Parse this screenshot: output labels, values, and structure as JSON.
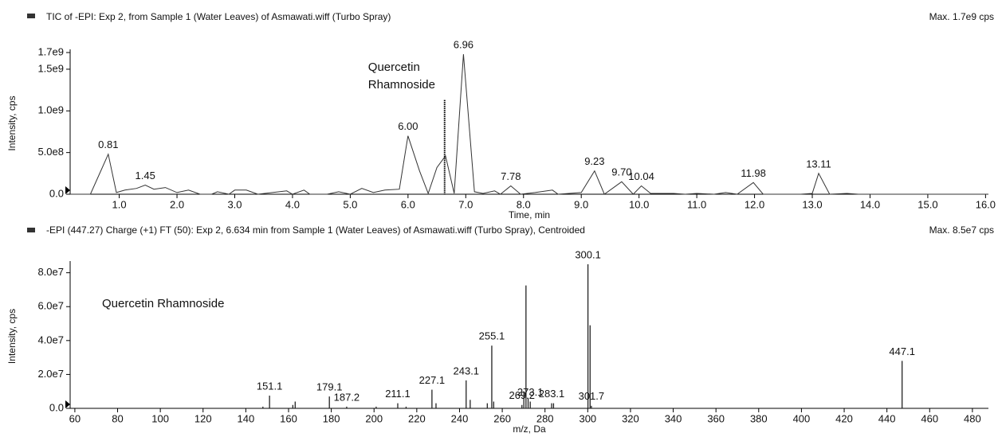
{
  "chart_data": [
    {
      "type": "line",
      "title": "TIC of -EPI: Exp 2, from Sample 1 (Water Leaves) of Asmawati.wiff (Turbo Spray)",
      "max_label": "Max. 1.7e9 cps",
      "x_label": "Time, min",
      "y_label": "Intensity, cps",
      "color": "#333333",
      "x": [
        0.15,
        0.5,
        0.81,
        0.95,
        1.1,
        1.3,
        1.45,
        1.6,
        1.8,
        2.0,
        2.2,
        2.4,
        2.6,
        2.7,
        2.9,
        3.0,
        3.2,
        3.4,
        3.9,
        4.0,
        4.2,
        4.3,
        4.6,
        4.8,
        5.0,
        5.2,
        5.4,
        5.6,
        5.85,
        6.0,
        6.2,
        6.35,
        6.5,
        6.65,
        6.8,
        6.96,
        7.15,
        7.3,
        7.5,
        7.6,
        7.78,
        7.95,
        8.2,
        8.5,
        8.6,
        9.0,
        9.23,
        9.4,
        9.7,
        9.9,
        10.04,
        10.2,
        10.6,
        10.8,
        11.0,
        11.3,
        11.5,
        11.7,
        11.98,
        12.15,
        12.8,
        13.0,
        13.11,
        13.3,
        13.6,
        13.8,
        16.05
      ],
      "values": [
        0,
        0,
        480000000.0,
        20000000.0,
        50000000.0,
        70000000.0,
        110000000.0,
        60000000.0,
        80000000.0,
        20000000.0,
        50000000.0,
        0,
        0,
        30000000.0,
        0,
        50000000.0,
        50000000.0,
        0,
        40000000.0,
        0,
        50000000.0,
        0,
        0,
        30000000.0,
        0,
        70000000.0,
        20000000.0,
        50000000.0,
        60000000.0,
        700000000.0,
        280000000.0,
        10000000.0,
        320000000.0,
        460000000.0,
        10000000.0,
        1680000000.0,
        30000000.0,
        10000000.0,
        40000000.0,
        0,
        100000000.0,
        0,
        20000000.0,
        50000000.0,
        0,
        20000000.0,
        280000000.0,
        0,
        150000000.0,
        0,
        100000000.0,
        10000000.0,
        10000000.0,
        0,
        10000000.0,
        0,
        20000000.0,
        0,
        140000000.0,
        0,
        0,
        10000000.0,
        250000000.0,
        0,
        10000000.0,
        0,
        0
      ],
      "peaks": [
        0.81,
        1.45,
        {
          "value": 6,
          "label": "6.00"
        },
        6.96,
        7.78,
        9.23,
        {
          "value": 9.7,
          "label": "9.70"
        },
        10.04,
        11.98,
        13.11
      ],
      "marker": {
        "x": 6.634,
        "y": 1130000000.0
      },
      "annotation": [
        "Quercetin",
        "Rhamnoside"
      ],
      "xlim": [
        0.15,
        16.05
      ],
      "ylim": [
        0,
        1700000000.0
      ],
      "xticks": [
        {
          "value": 1,
          "label": "1.0"
        },
        {
          "value": 2,
          "label": "2.0"
        },
        {
          "value": 3,
          "label": "3.0"
        },
        {
          "value": 4,
          "label": "4.0"
        },
        {
          "value": 5,
          "label": "5.0"
        },
        {
          "value": 6,
          "label": "6.0"
        },
        {
          "value": 7,
          "label": "7.0"
        },
        {
          "value": 8,
          "label": "8.0"
        },
        {
          "value": 9,
          "label": "9.0"
        },
        {
          "value": 10,
          "label": "10.0"
        },
        {
          "value": 11,
          "label": "11.0"
        },
        {
          "value": 12,
          "label": "12.0"
        },
        {
          "value": 13,
          "label": "13.0"
        },
        {
          "value": 14,
          "label": "14.0"
        },
        {
          "value": 15,
          "label": "15.0"
        },
        {
          "value": 16,
          "label": "16.0"
        }
      ],
      "yticks": [
        {
          "value": 0,
          "label": "0.0"
        },
        {
          "value": 500000000.0,
          "label": "5.0e8"
        },
        {
          "value": 1000000000.0,
          "label": "1.0e9"
        },
        {
          "value": 1500000000.0,
          "label": "1.5e9"
        },
        {
          "value": 1700000000.0,
          "label": "1.7e9"
        }
      ]
    },
    {
      "type": "stick",
      "title": "-EPI (447.27) Charge (+1) FT (50): Exp 2, 6.634 min from Sample 1 (Water Leaves) of Asmawati.wiff (Turbo Spray), Centroided",
      "max_label": "Max. 8.5e7 cps",
      "x_label": "m/z, Da",
      "y_label": "Intensity, cps",
      "color": "#222222",
      "annotation": [
        "Quercetin Rhamnoside"
      ],
      "x": [
        148,
        151.1,
        162,
        163.1,
        179.1,
        187.2,
        201,
        211.1,
        215,
        227.1,
        229,
        243.1,
        245,
        253,
        255.1,
        256,
        269.2,
        270.1,
        271.1,
        272.1,
        273.1,
        283.1,
        284,
        300.1,
        301.1,
        301.7,
        447.1
      ],
      "values": [
        1000000.0,
        7500000.0,
        2000000.0,
        4000000.0,
        7000000.0,
        1000000.0,
        1000000.0,
        3000000.0,
        1000000.0,
        11000000.0,
        3000000.0,
        16500000.0,
        5000000.0,
        3000000.0,
        37000000.0,
        4000000.0,
        2000000.0,
        10000000.0,
        72500000.0,
        6000000.0,
        4000000.0,
        3000000.0,
        3000000.0,
        85000000.0,
        49000000.0,
        1500000.0,
        28000000.0
      ],
      "peaks": [
        151.1,
        179.1,
        187.2,
        211.1,
        227.1,
        243.1,
        255.1,
        269.2,
        273.1,
        283.1,
        300.1,
        301.7,
        447.1
      ],
      "xlim": [
        57.8,
        487.5
      ],
      "ylim": [
        0,
        85000000.0
      ],
      "xticks": [
        60,
        80,
        100,
        120,
        140,
        160,
        180,
        200,
        220,
        240,
        260,
        280,
        300,
        320,
        340,
        360,
        380,
        400,
        420,
        440,
        460,
        480
      ],
      "yticks": [
        {
          "value": 0,
          "label": "0.0"
        },
        {
          "value": 20000000.0,
          "label": "2.0e7"
        },
        {
          "value": 40000000.0,
          "label": "4.0e7"
        },
        {
          "value": 60000000.0,
          "label": "6.0e7"
        },
        {
          "value": 80000000.0,
          "label": "8.0e7"
        }
      ]
    }
  ]
}
